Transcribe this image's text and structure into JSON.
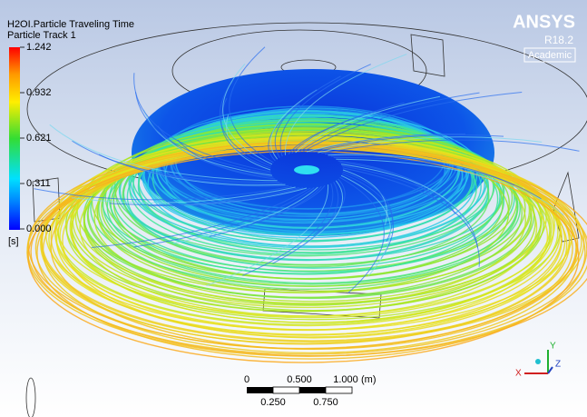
{
  "legend": {
    "title": "H2OI.Particle Traveling Time",
    "subtitle": "Particle Track 1",
    "ticks": [
      "1.242",
      "0.932",
      "0.621",
      "0.311",
      "0.000"
    ],
    "unit": "[s]"
  },
  "logo": {
    "brand": "ANSYS",
    "version": "R18.2",
    "edition": "Academic"
  },
  "scale_bar": {
    "top_labels": [
      "0",
      "0.500",
      "1.000"
    ],
    "unit": "(m)",
    "bottom_labels": [
      "0.250",
      "0.750"
    ]
  },
  "triad": {
    "y": "Y",
    "z": "Z",
    "x": "X"
  }
}
